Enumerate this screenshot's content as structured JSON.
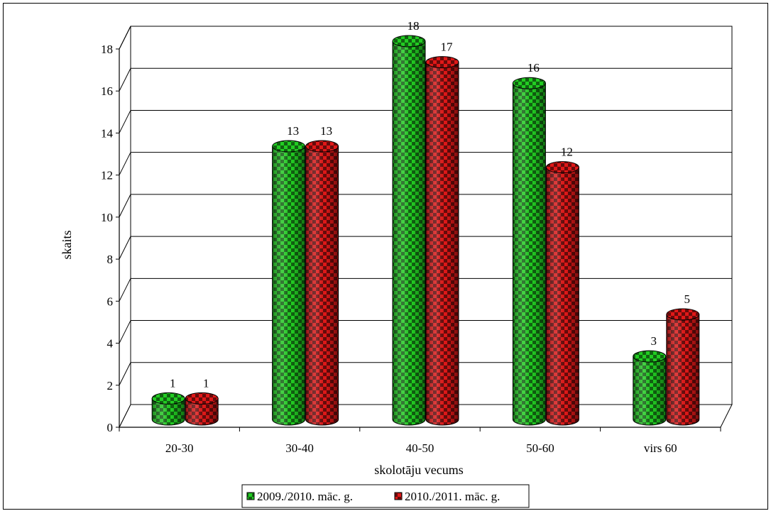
{
  "chart_data": {
    "type": "bar",
    "style": "3d-cylinder",
    "categories": [
      "20-30",
      "30-40",
      "40-50",
      "50-60",
      "virs 60"
    ],
    "series": [
      {
        "name": "2009./2010. māc. g.",
        "values": [
          1,
          13,
          18,
          16,
          3
        ],
        "color": "#22cc22"
      },
      {
        "name": "2010./2011. māc. g.",
        "values": [
          1,
          13,
          17,
          12,
          5
        ],
        "color": "#e01818"
      }
    ],
    "title": "",
    "xlabel": "skolotāju vecums",
    "ylabel": "skaits",
    "ylim": [
      0,
      18
    ],
    "yticks": [
      0,
      2,
      4,
      6,
      8,
      10,
      12,
      14,
      16,
      18
    ],
    "grid": true,
    "legend_position": "bottom",
    "data_labels": true
  }
}
